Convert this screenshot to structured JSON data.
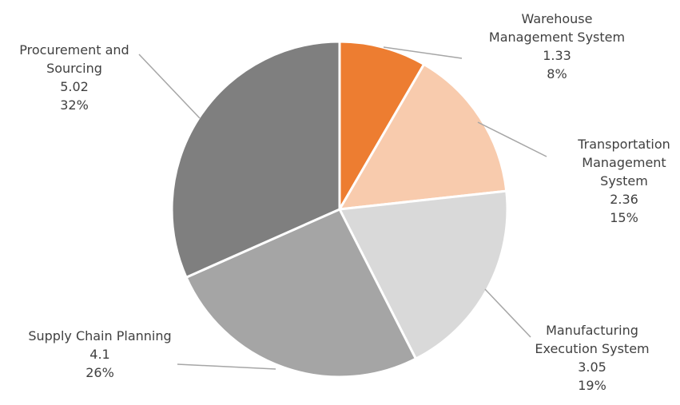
{
  "chart_data": {
    "type": "pie",
    "title": "",
    "start_angle_deg": 0,
    "direction": "clockwise",
    "legend": "none",
    "slices": [
      {
        "label_lines": [
          "Warehouse",
          "Management System"
        ],
        "value": 1.33,
        "value_text": "1.33",
        "percent_text": "8%",
        "color": "#ed7d31"
      },
      {
        "label_lines": [
          "Transportation",
          "Management",
          "System"
        ],
        "value": 2.36,
        "value_text": "2.36",
        "percent_text": "15%",
        "color": "#f8cbad"
      },
      {
        "label_lines": [
          "Manufacturing",
          "Execution System"
        ],
        "value": 3.05,
        "value_text": "3.05",
        "percent_text": "19%",
        "color": "#d9d9d9"
      },
      {
        "label_lines": [
          "Supply Chain Planning"
        ],
        "value": 4.1,
        "value_text": "4.1",
        "percent_text": "26%",
        "color": "#a5a5a5"
      },
      {
        "label_lines": [
          "Procurement and",
          "Sourcing"
        ],
        "value": 5.02,
        "value_text": "5.02",
        "percent_text": "32%",
        "color": "#7f7f7f"
      }
    ]
  }
}
